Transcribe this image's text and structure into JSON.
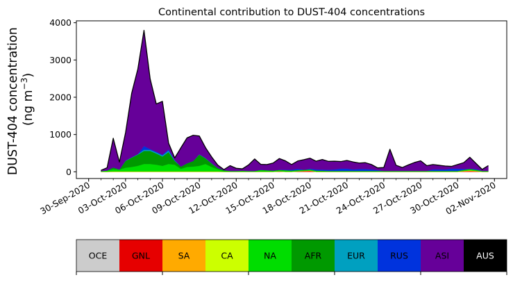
{
  "chart_data": {
    "type": "area",
    "title": "Continental contribution to DUST-404 concentrations",
    "ylabel_line1": "DUST-404 concentration",
    "ylabel_line2_prefix": "(ng m",
    "ylabel_line2_sup": "−3",
    "ylabel_line2_suffix": ")",
    "xlabel": "",
    "ylim": [
      -180,
      4050
    ],
    "xlim": [
      "2020-09-29",
      "2020-11-03"
    ],
    "y_ticks": [
      0,
      1000,
      2000,
      3000,
      4000
    ],
    "x_ticks": [
      "2020-09-30",
      "2020-10-03",
      "2020-10-06",
      "2020-10-09",
      "2020-10-12",
      "2020-10-15",
      "2020-10-18",
      "2020-10-21",
      "2020-10-24",
      "2020-10-27",
      "2020-10-30",
      "2020-11-02"
    ],
    "x_tick_labels": [
      "30-Sep-2020",
      "03-Oct-2020",
      "06-Oct-2020",
      "09-Oct-2020",
      "12-Oct-2020",
      "15-Oct-2020",
      "18-Oct-2020",
      "21-Oct-2020",
      "24-Oct-2020",
      "27-Oct-2020",
      "30-Oct-2020",
      "02-Nov-2020"
    ],
    "x": [
      "2020-10-01",
      "2020-10-01T12:00",
      "2020-10-02",
      "2020-10-02T12:00",
      "2020-10-03",
      "2020-10-03T12:00",
      "2020-10-04",
      "2020-10-04T12:00",
      "2020-10-05",
      "2020-10-05T12:00",
      "2020-10-06",
      "2020-10-06T12:00",
      "2020-10-07",
      "2020-10-07T12:00",
      "2020-10-08",
      "2020-10-08T12:00",
      "2020-10-09",
      "2020-10-09T12:00",
      "2020-10-10",
      "2020-10-10T12:00",
      "2020-10-11",
      "2020-10-11T12:00",
      "2020-10-12",
      "2020-10-12T12:00",
      "2020-10-13",
      "2020-10-13T12:00",
      "2020-10-14",
      "2020-10-14T12:00",
      "2020-10-15",
      "2020-10-15T12:00",
      "2020-10-16",
      "2020-10-16T12:00",
      "2020-10-17",
      "2020-10-17T12:00",
      "2020-10-18",
      "2020-10-18T12:00",
      "2020-10-19",
      "2020-10-19T12:00",
      "2020-10-20",
      "2020-10-20T12:00",
      "2020-10-21",
      "2020-10-21T12:00",
      "2020-10-22",
      "2020-10-22T12:00",
      "2020-10-23",
      "2020-10-23T12:00",
      "2020-10-24",
      "2020-10-24T12:00",
      "2020-10-25",
      "2020-10-25T12:00",
      "2020-10-26",
      "2020-10-26T12:00",
      "2020-10-27",
      "2020-10-27T12:00",
      "2020-10-28",
      "2020-10-28T12:00",
      "2020-10-29",
      "2020-10-29T12:00",
      "2020-10-30",
      "2020-10-30T12:00",
      "2020-10-31",
      "2020-10-31T12:00",
      "2020-11-01",
      "2020-11-01T12:00"
    ],
    "series": [
      {
        "name": "OCE",
        "color": "#cccccc",
        "values": [
          0,
          0,
          0,
          0,
          0,
          0,
          0,
          0,
          0,
          0,
          0,
          0,
          0,
          0,
          0,
          0,
          0,
          0,
          0,
          0,
          0,
          0,
          0,
          0,
          0,
          0,
          0,
          0,
          0,
          0,
          0,
          0,
          0,
          0,
          0,
          0,
          0,
          0,
          0,
          0,
          0,
          0,
          0,
          0,
          0,
          0,
          0,
          0,
          0,
          0,
          0,
          0,
          0,
          0,
          0,
          0,
          0,
          0,
          0,
          0,
          0,
          0,
          0,
          0
        ]
      },
      {
        "name": "GNL",
        "color": "#e60000",
        "values": [
          0,
          0,
          0,
          0,
          0,
          0,
          0,
          0,
          0,
          0,
          0,
          0,
          0,
          0,
          0,
          0,
          0,
          0,
          0,
          0,
          0,
          0,
          0,
          0,
          0,
          0,
          0,
          0,
          0,
          10,
          0,
          0,
          10,
          15,
          20,
          0,
          0,
          0,
          0,
          0,
          0,
          0,
          0,
          0,
          0,
          0,
          0,
          0,
          0,
          0,
          0,
          0,
          0,
          0,
          0,
          0,
          0,
          0,
          0,
          10,
          15,
          10,
          0,
          0
        ]
      },
      {
        "name": "SA",
        "color": "#ffaa00",
        "values": [
          0,
          0,
          0,
          0,
          0,
          0,
          0,
          0,
          0,
          0,
          0,
          0,
          0,
          0,
          0,
          0,
          0,
          0,
          0,
          0,
          0,
          0,
          0,
          0,
          0,
          0,
          0,
          0,
          0,
          0,
          0,
          0,
          0,
          5,
          10,
          0,
          0,
          0,
          0,
          0,
          0,
          0,
          0,
          0,
          0,
          0,
          0,
          0,
          0,
          0,
          0,
          0,
          0,
          0,
          0,
          0,
          0,
          0,
          0,
          10,
          20,
          10,
          0,
          0
        ]
      },
      {
        "name": "CA",
        "color": "#ccff00",
        "values": [
          5,
          5,
          10,
          10,
          10,
          10,
          10,
          10,
          10,
          10,
          10,
          10,
          10,
          10,
          10,
          10,
          10,
          10,
          10,
          10,
          5,
          5,
          5,
          5,
          5,
          5,
          5,
          5,
          5,
          5,
          5,
          5,
          5,
          5,
          5,
          5,
          5,
          5,
          5,
          5,
          5,
          5,
          5,
          5,
          5,
          5,
          5,
          5,
          5,
          5,
          5,
          5,
          5,
          5,
          5,
          5,
          5,
          5,
          5,
          5,
          5,
          5,
          5,
          5
        ]
      },
      {
        "name": "NA",
        "color": "#00dd00",
        "values": [
          15,
          30,
          60,
          50,
          100,
          120,
          150,
          200,
          200,
          180,
          150,
          200,
          180,
          70,
          120,
          130,
          150,
          200,
          120,
          60,
          20,
          10,
          10,
          15,
          10,
          10,
          40,
          30,
          20,
          30,
          30,
          20,
          25,
          20,
          20,
          20,
          15,
          10,
          10,
          10,
          10,
          10,
          10,
          10,
          10,
          10,
          10,
          10,
          10,
          10,
          10,
          10,
          10,
          10,
          10,
          10,
          10,
          10,
          10,
          20,
          30,
          20,
          10,
          10
        ]
      },
      {
        "name": "AFR",
        "color": "#009900",
        "values": [
          0,
          0,
          50,
          0,
          180,
          250,
          300,
          350,
          350,
          300,
          250,
          320,
          100,
          60,
          100,
          150,
          300,
          150,
          90,
          30,
          20,
          10,
          10,
          10,
          10,
          10,
          10,
          10,
          10,
          10,
          10,
          10,
          10,
          10,
          10,
          10,
          10,
          10,
          10,
          10,
          10,
          10,
          10,
          10,
          10,
          10,
          10,
          10,
          10,
          10,
          10,
          10,
          10,
          10,
          10,
          10,
          10,
          10,
          10,
          10,
          10,
          10,
          10,
          10
        ]
      },
      {
        "name": "EUR",
        "color": "#00a0c0",
        "values": [
          0,
          0,
          0,
          0,
          10,
          10,
          15,
          30,
          30,
          30,
          30,
          40,
          15,
          0,
          0,
          0,
          10,
          10,
          10,
          5,
          0,
          0,
          0,
          0,
          0,
          0,
          0,
          0,
          0,
          0,
          0,
          0,
          0,
          0,
          0,
          0,
          0,
          0,
          0,
          0,
          0,
          0,
          0,
          0,
          0,
          0,
          0,
          0,
          0,
          0,
          0,
          0,
          0,
          0,
          0,
          0,
          0,
          0,
          0,
          0,
          0,
          0,
          0,
          0
        ]
      },
      {
        "name": "RUS",
        "color": "#0033dd",
        "values": [
          0,
          0,
          0,
          0,
          0,
          0,
          0,
          100,
          20,
          20,
          20,
          30,
          10,
          0,
          0,
          0,
          0,
          0,
          0,
          0,
          0,
          0,
          0,
          0,
          0,
          0,
          0,
          0,
          0,
          0,
          10,
          20,
          30,
          0,
          20,
          30,
          30,
          30,
          40,
          60,
          60,
          40,
          50,
          50,
          40,
          20,
          0,
          0,
          0,
          0,
          0,
          0,
          0,
          0,
          40,
          40,
          40,
          60,
          60,
          20,
          0,
          20,
          0,
          0
        ]
      },
      {
        "name": "ASI",
        "color": "#660099",
        "values": [
          20,
          75,
          780,
          200,
          750,
          1720,
          2285,
          3105,
          1885,
          1280,
          1430,
          170,
          57,
          505,
          680,
          690,
          490,
          280,
          170,
          75,
          15,
          140,
          70,
          50,
          160,
          320,
          145,
          150,
          200,
          300,
          240,
          140,
          210,
          270,
          280,
          220,
          270,
          225,
          220,
          190,
          220,
          200,
          160,
          170,
          130,
          60,
          90,
          580,
          150,
          90,
          160,
          225,
          270,
          140,
          130,
          110,
          90,
          60,
          110,
          170,
          310,
          150,
          40,
          140
        ]
      },
      {
        "name": "AUS",
        "color": "#000000",
        "values": [
          0,
          0,
          0,
          0,
          0,
          0,
          0,
          0,
          0,
          0,
          0,
          0,
          0,
          0,
          0,
          0,
          0,
          0,
          0,
          0,
          0,
          0,
          0,
          0,
          0,
          0,
          0,
          0,
          0,
          0,
          0,
          0,
          0,
          0,
          0,
          0,
          0,
          0,
          0,
          0,
          0,
          0,
          0,
          0,
          0,
          0,
          0,
          0,
          0,
          0,
          0,
          0,
          0,
          0,
          0,
          0,
          0,
          0,
          0,
          0,
          0,
          0,
          0,
          0
        ]
      }
    ],
    "legend": {
      "placement": "bottom",
      "style": "colorbar",
      "items": [
        {
          "label": "OCE",
          "color": "#cccccc",
          "text_color": "#000000"
        },
        {
          "label": "GNL",
          "color": "#e60000",
          "text_color": "#000000"
        },
        {
          "label": "SA",
          "color": "#ffaa00",
          "text_color": "#000000"
        },
        {
          "label": "CA",
          "color": "#ccff00",
          "text_color": "#000000"
        },
        {
          "label": "NA",
          "color": "#00dd00",
          "text_color": "#000000"
        },
        {
          "label": "AFR",
          "color": "#009900",
          "text_color": "#000000"
        },
        {
          "label": "EUR",
          "color": "#00a0c0",
          "text_color": "#000000"
        },
        {
          "label": "RUS",
          "color": "#0033dd",
          "text_color": "#000000"
        },
        {
          "label": "ASI",
          "color": "#660099",
          "text_color": "#000000"
        },
        {
          "label": "AUS",
          "color": "#000000",
          "text_color": "#ffffff"
        }
      ]
    },
    "grid": false,
    "total_outline_color": "#000000"
  }
}
